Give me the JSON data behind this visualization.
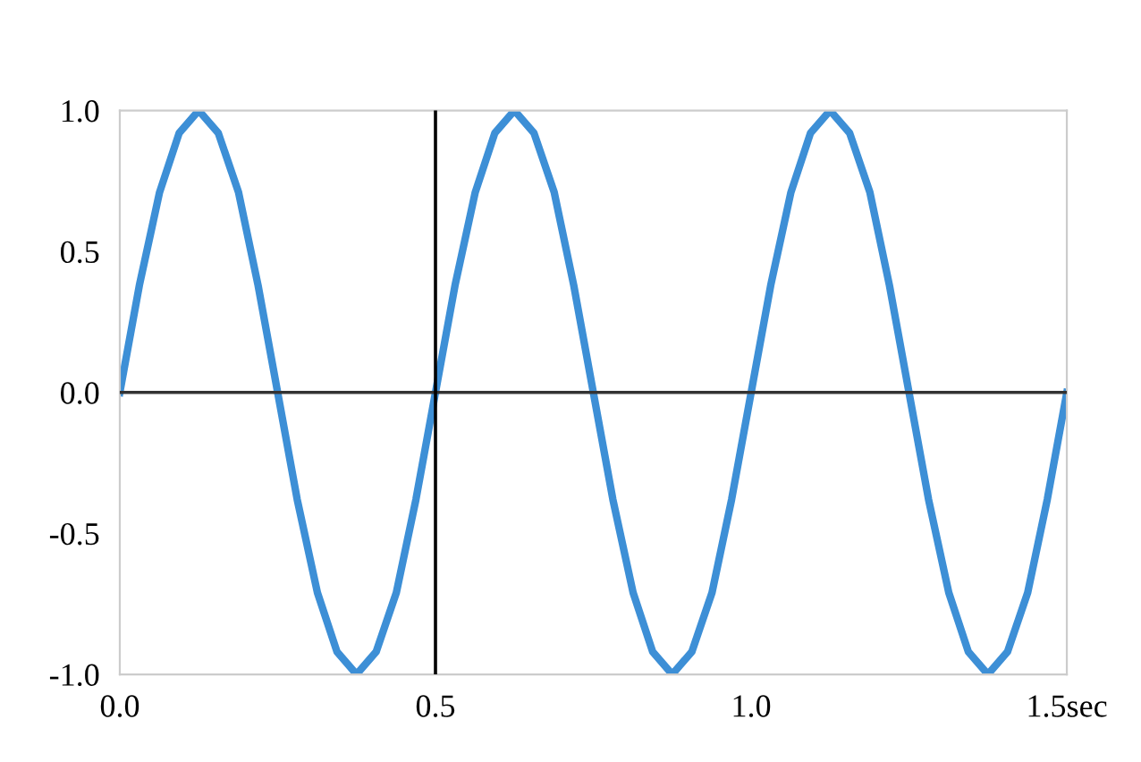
{
  "chart_data": {
    "type": "line",
    "xlabel": null,
    "x": [
      0,
      0.031,
      0.063,
      0.094,
      0.125,
      0.156,
      0.188,
      0.219,
      0.25,
      0.281,
      0.313,
      0.344,
      0.375,
      0.406,
      0.438,
      0.469,
      0.5,
      0.531,
      0.563,
      0.594,
      0.625,
      0.656,
      0.688,
      0.719,
      0.75,
      0.781,
      0.813,
      0.844,
      0.875,
      0.906,
      0.938,
      0.969,
      1.0,
      1.031,
      1.063,
      1.094,
      1.125,
      1.156,
      1.188,
      1.219,
      1.25,
      1.281,
      1.313,
      1.344,
      1.375,
      1.406,
      1.438,
      1.469,
      1.5
    ],
    "series": [
      {
        "color": "#3d8fd6",
        "values": [
          0,
          0.38,
          0.71,
          0.92,
          1.0,
          0.92,
          0.71,
          0.38,
          0,
          -0.38,
          -0.71,
          -0.92,
          -1.0,
          -0.92,
          -0.71,
          -0.38,
          0,
          0.38,
          0.71,
          0.92,
          1.0,
          0.92,
          0.71,
          0.38,
          0,
          -0.38,
          -0.71,
          -0.92,
          -1.0,
          -0.92,
          -0.71,
          -0.38,
          0,
          0.38,
          0.71,
          0.92,
          1.0,
          0.92,
          0.71,
          0.38,
          0,
          -0.38,
          -0.71,
          -0.92,
          -1.0,
          -0.92,
          -0.71,
          -0.38,
          0
        ]
      }
    ],
    "xlim": [
      0,
      1.5
    ],
    "ylim": [
      -1.0,
      1.0
    ],
    "xticks": [
      {
        "value": 0,
        "label": "0.0"
      },
      {
        "value": 0.5,
        "label": "0.5"
      },
      {
        "value": 1.0,
        "label": "1.0"
      },
      {
        "value": 1.5,
        "label": "1.5sec"
      }
    ],
    "yticks": [
      {
        "value": 1.0,
        "label": "1.0"
      },
      {
        "value": 0.5,
        "label": "0.5"
      },
      {
        "value": 0,
        "label": "0.0"
      },
      {
        "value": -0.5,
        "label": "-0.5"
      },
      {
        "value": -1.0,
        "label": "-1.0"
      }
    ],
    "ref_lines": [
      {
        "axis": "y",
        "value": 0,
        "color": "#333333"
      },
      {
        "axis": "x",
        "value": 0.5,
        "color": "#000000"
      }
    ],
    "grid": false,
    "legend": false,
    "marker": "none",
    "line_style": "solid"
  }
}
